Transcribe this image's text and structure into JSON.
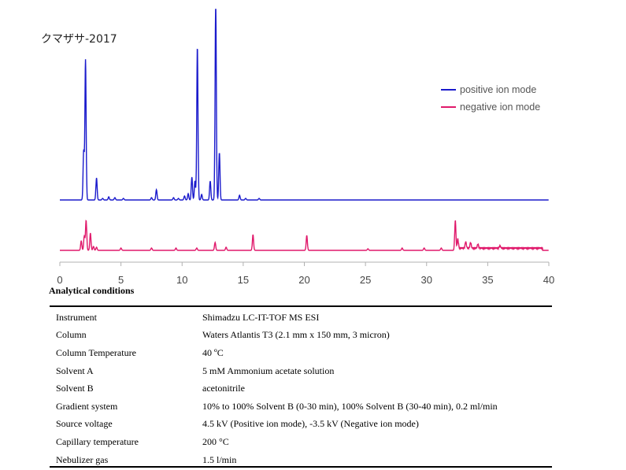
{
  "chart_data": {
    "type": "line",
    "title": "クマザサ-2017",
    "xlabel": "",
    "ylabel": "",
    "xlim": [
      0,
      40
    ],
    "x_ticks": [
      0,
      5,
      10,
      15,
      20,
      25,
      30,
      35,
      40
    ],
    "grid": false,
    "y_axis_shown": false,
    "legend_position": "top-right",
    "series": [
      {
        "name": "positive ion mode",
        "color": "#1a1acc",
        "peaks": [
          [
            1.95,
            62
          ],
          [
            2.1,
            178
          ],
          [
            3.0,
            28
          ],
          [
            3.5,
            2
          ],
          [
            4.0,
            4
          ],
          [
            4.5,
            3
          ],
          [
            5.2,
            2
          ],
          [
            7.5,
            3
          ],
          [
            7.9,
            13
          ],
          [
            9.3,
            3
          ],
          [
            9.7,
            2
          ],
          [
            10.2,
            5
          ],
          [
            10.5,
            8
          ],
          [
            10.8,
            29
          ],
          [
            11.05,
            24
          ],
          [
            11.25,
            195
          ],
          [
            11.6,
            7
          ],
          [
            12.3,
            24
          ],
          [
            12.75,
            258
          ],
          [
            13.05,
            60
          ],
          [
            14.7,
            6
          ],
          [
            15.2,
            2
          ],
          [
            16.3,
            2
          ]
        ]
      },
      {
        "name": "negative ion mode",
        "color": "#e0196b",
        "peaks": [
          [
            1.75,
            12
          ],
          [
            2.0,
            18
          ],
          [
            2.15,
            38
          ],
          [
            2.5,
            22
          ],
          [
            2.75,
            5
          ],
          [
            3.0,
            4
          ],
          [
            5.0,
            3
          ],
          [
            7.5,
            3
          ],
          [
            9.5,
            3
          ],
          [
            11.2,
            3
          ],
          [
            12.7,
            10
          ],
          [
            13.6,
            4
          ],
          [
            15.8,
            20
          ],
          [
            20.2,
            19
          ],
          [
            25.2,
            2
          ],
          [
            28.0,
            3
          ],
          [
            29.8,
            3
          ],
          [
            31.2,
            3
          ],
          [
            32.35,
            38
          ],
          [
            32.55,
            15
          ],
          [
            33.2,
            8
          ],
          [
            33.6,
            7
          ],
          [
            34.2,
            5
          ],
          [
            36.0,
            3
          ]
        ]
      }
    ]
  },
  "conditions": {
    "heading": "Analytical conditions",
    "rows": [
      {
        "parameter": "Instrument",
        "value": "Shimadzu LC-IT-TOF MS ESI"
      },
      {
        "parameter": "Column",
        "value": "Waters Atlantis T3 (2.1 mm x 150 mm, 3 micron)"
      },
      {
        "parameter": "Column Temperature",
        "value": "40 ºC"
      },
      {
        "parameter": "Solvent A",
        "value": "5 mM Ammonium acetate solution"
      },
      {
        "parameter": "Solvent B",
        "value": "acetonitrile"
      },
      {
        "parameter": "Gradient system",
        "value": "10% to 100% Solvent B (0-30 min), 100% Solvent B (30-40 min), 0.2 ml/min"
      },
      {
        "parameter": "Source voltage",
        "value": "4.5 kV (Positive ion mode), -3.5 kV (Negative ion mode)"
      },
      {
        "parameter": "Capillary temperature",
        "value": "200 °C"
      },
      {
        "parameter": "Nebulizer gas",
        "value": "1.5 l/min"
      }
    ]
  }
}
